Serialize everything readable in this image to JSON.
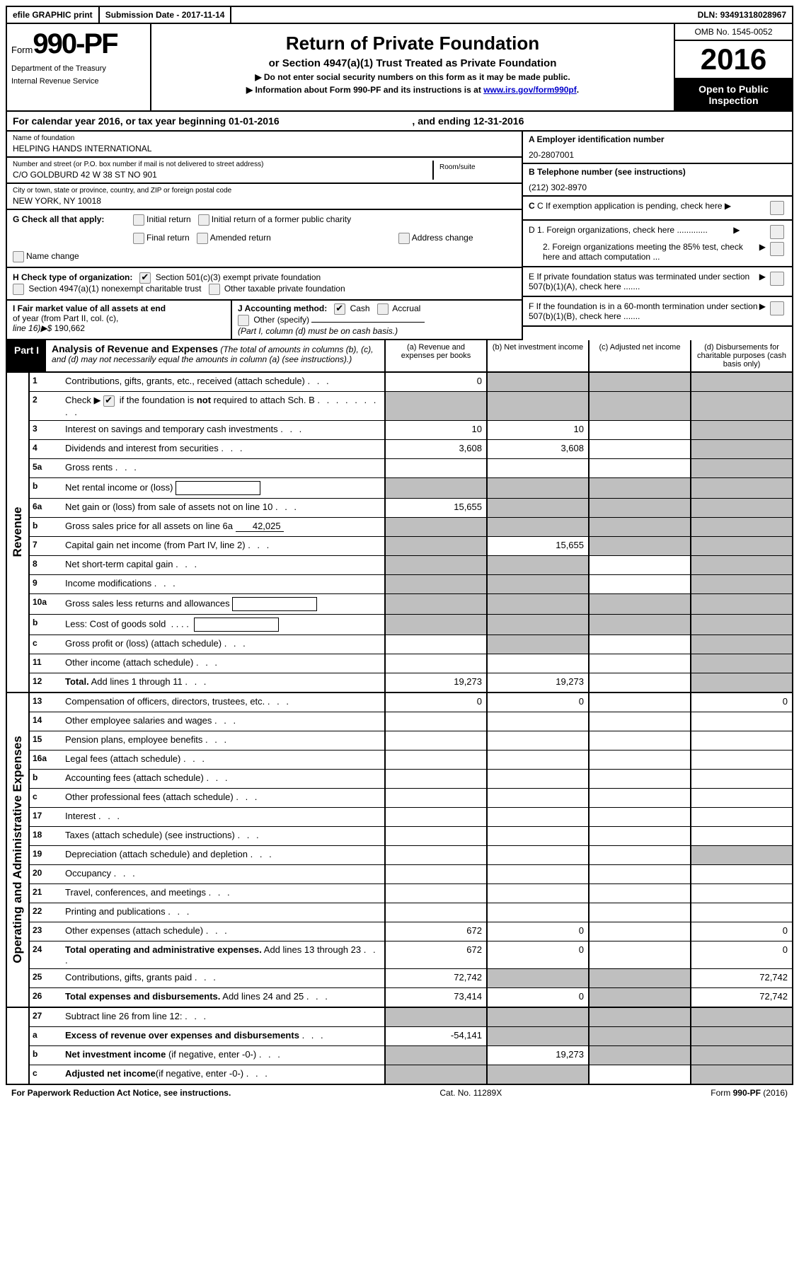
{
  "topbar": {
    "efile": "efile GRAPHIC print",
    "submission_label": "Submission Date - ",
    "submission_date": "2017-11-14",
    "dln_label": "DLN: ",
    "dln": "93491318028967"
  },
  "header": {
    "form_prefix": "Form",
    "form_number": "990-PF",
    "dept1": "Department of the Treasury",
    "dept2": "Internal Revenue Service",
    "title": "Return of Private Foundation",
    "subtitle": "or Section 4947(a)(1) Trust Treated as Private Foundation",
    "note1": "▶ Do not enter social security numbers on this form as it may be made public.",
    "note2_pre": "▶ Information about Form 990-PF and its instructions is at ",
    "note2_link": "www.irs.gov/form990pf",
    "omb": "OMB No. 1545-0052",
    "year": "2016",
    "open1": "Open to Public",
    "open2": "Inspection"
  },
  "cal_year": {
    "pre": "For calendar year 2016, or tax year beginning ",
    "begin": "01-01-2016",
    "mid": " , and ending ",
    "end": "12-31-2016"
  },
  "name_block": {
    "name_label": "Name of foundation",
    "name": "HELPING HANDS INTERNATIONAL",
    "ein_label": "A Employer identification number",
    "ein": "20-2807001",
    "addr_label": "Number and street (or P.O. box number if mail is not delivered to street address)",
    "addr": "C/O GOLDBURD 42 W 38 ST NO 901",
    "room_label": "Room/suite",
    "room": "",
    "tel_label": "B Telephone number (see instructions)",
    "tel": "(212) 302-8970",
    "city_label": "City or town, state or province, country, and ZIP or foreign postal code",
    "city": "NEW YORK, NY  10018",
    "c_label": "C If exemption application is pending, check here"
  },
  "g_block": {
    "lead": "G Check all that apply:",
    "opts": [
      "Initial return",
      "Initial return of a former public charity",
      "Final return",
      "Amended return",
      "Address change",
      "Name change"
    ]
  },
  "d_block": {
    "d1": "D 1. Foreign organizations, check here .............",
    "d2": "2. Foreign organizations meeting the 85% test, check here and attach computation ...",
    "e": "E  If private foundation status was terminated under section 507(b)(1)(A), check here .......",
    "f": "F  If the foundation is in a 60-month termination under section 507(b)(1)(B), check here ......."
  },
  "h_block": {
    "lead": "H Check type of organization:",
    "o1": "Section 501(c)(3) exempt private foundation",
    "o2": "Section 4947(a)(1) nonexempt charitable trust",
    "o3": "Other taxable private foundation"
  },
  "i_block": {
    "text1": "I Fair market value of all assets at end",
    "text2": "of year (from Part II, col. (c),",
    "text3": "line 16)▶$  ",
    "value": "190,662"
  },
  "j_block": {
    "lead": "J Accounting method:",
    "cash": "Cash",
    "accrual": "Accrual",
    "other": "Other (specify)",
    "note": "(Part I, column (d) must be on cash basis.)"
  },
  "part1": {
    "tag": "Part I",
    "title": "Analysis of Revenue and Expenses",
    "desc": "(The total of amounts in columns (b), (c), and (d) may not necessarily equal the amounts in column (a) (see instructions).)",
    "col_a": "(a)   Revenue and expenses per books",
    "col_b": "(b)  Net investment income",
    "col_c": "(c)  Adjusted net income",
    "col_d": "(d)  Disbursements for charitable purposes (cash basis only)"
  },
  "sections": {
    "revenue": "Revenue",
    "expenses": "Operating and Administrative Expenses"
  },
  "rows": {
    "r1": {
      "n": "1",
      "d": "Contributions, gifts, grants, etc., received (attach schedule)",
      "a": "0"
    },
    "r2": {
      "n": "2",
      "d_pre": "Check ▶ ",
      "d_post": " if the foundation is <b>not</b> required to attach Sch. B"
    },
    "r3": {
      "n": "3",
      "d": "Interest on savings and temporary cash investments",
      "a": "10",
      "b": "10"
    },
    "r4": {
      "n": "4",
      "d": "Dividends and interest from securities",
      "a": "3,608",
      "b": "3,608"
    },
    "r5a": {
      "n": "5a",
      "d": "Gross rents"
    },
    "r5b": {
      "n": "b",
      "d": "Net rental income or (loss)"
    },
    "r6a": {
      "n": "6a",
      "d": "Net gain or (loss) from sale of assets not on line 10",
      "a": "15,655"
    },
    "r6b": {
      "n": "b",
      "d": "Gross sales price for all assets on line 6a",
      "val": "42,025"
    },
    "r7": {
      "n": "7",
      "d": "Capital gain net income (from Part IV, line 2)",
      "b": "15,655"
    },
    "r8": {
      "n": "8",
      "d": "Net short-term capital gain"
    },
    "r9": {
      "n": "9",
      "d": "Income modifications"
    },
    "r10a": {
      "n": "10a",
      "d": "Gross sales less returns and allowances"
    },
    "r10b": {
      "n": "b",
      "d": "Less: Cost of goods sold"
    },
    "r10c": {
      "n": "c",
      "d": "Gross profit or (loss) (attach schedule)"
    },
    "r11": {
      "n": "11",
      "d": "Other income (attach schedule)"
    },
    "r12": {
      "n": "12",
      "d": "<b>Total.</b> Add lines 1 through 11",
      "a": "19,273",
      "b": "19,273"
    },
    "r13": {
      "n": "13",
      "d": "Compensation of officers, directors, trustees, etc.",
      "a": "0",
      "b": "0",
      "d4": "0"
    },
    "r14": {
      "n": "14",
      "d": "Other employee salaries and wages"
    },
    "r15": {
      "n": "15",
      "d": "Pension plans, employee benefits"
    },
    "r16a": {
      "n": "16a",
      "d": "Legal fees (attach schedule)"
    },
    "r16b": {
      "n": "b",
      "d": "Accounting fees (attach schedule)"
    },
    "r16c": {
      "n": "c",
      "d": "Other professional fees (attach schedule)"
    },
    "r17": {
      "n": "17",
      "d": "Interest"
    },
    "r18": {
      "n": "18",
      "d": "Taxes (attach schedule) (see instructions)"
    },
    "r19": {
      "n": "19",
      "d": "Depreciation (attach schedule) and depletion"
    },
    "r20": {
      "n": "20",
      "d": "Occupancy"
    },
    "r21": {
      "n": "21",
      "d": "Travel, conferences, and meetings"
    },
    "r22": {
      "n": "22",
      "d": "Printing and publications"
    },
    "r23": {
      "n": "23",
      "d": "Other expenses (attach schedule)",
      "a": "672",
      "b": "0",
      "d4": "0"
    },
    "r24": {
      "n": "24",
      "d": "<b>Total operating and administrative expenses.</b> Add lines 13 through 23",
      "a": "672",
      "b": "0",
      "d4": "0"
    },
    "r25": {
      "n": "25",
      "d": "Contributions, gifts, grants paid",
      "a": "72,742",
      "d4": "72,742"
    },
    "r26": {
      "n": "26",
      "d": "<b>Total expenses and disbursements.</b> Add lines 24 and 25",
      "a": "73,414",
      "b": "0",
      "d4": "72,742"
    },
    "r27": {
      "n": "27",
      "d": "Subtract line 26 from line 12:"
    },
    "r27a": {
      "n": "a",
      "d": "<b>Excess of revenue over expenses and disbursements</b>",
      "a": "-54,141"
    },
    "r27b": {
      "n": "b",
      "d": "<b>Net investment income</b> (if negative, enter -0-)",
      "b": "19,273"
    },
    "r27c": {
      "n": "c",
      "d": "<b>Adjusted net income</b>(if negative, enter -0-)"
    }
  },
  "footer": {
    "left": "For Paperwork Reduction Act Notice, see instructions.",
    "mid": "Cat. No. 11289X",
    "right_pre": "Form ",
    "right_form": "990-PF",
    "right_post": " (2016)"
  }
}
